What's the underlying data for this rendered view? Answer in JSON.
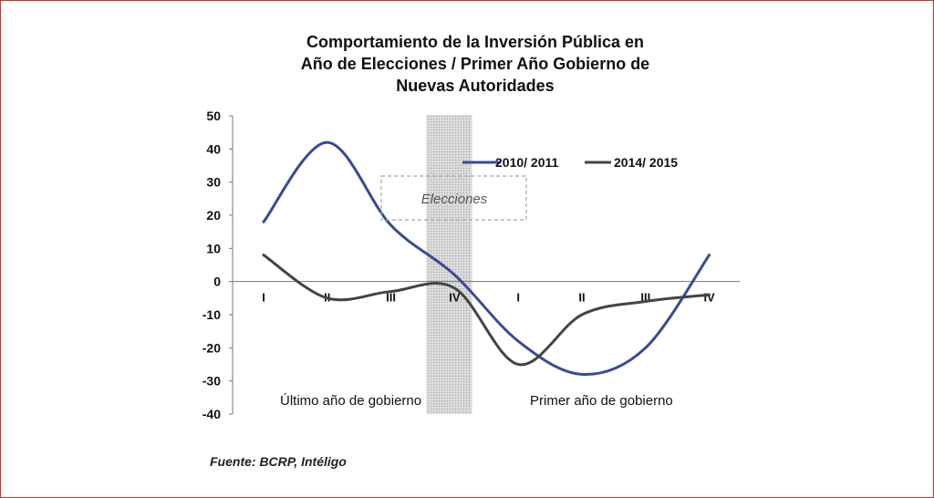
{
  "title_lines": [
    "Comportamiento de la Inversión Pública en",
    "Año de Elecciones / Primer Año Gobierno de",
    "Nuevas Autoridades"
  ],
  "source": "Fuente: BCRP, Intéligo",
  "chart_data": {
    "type": "line",
    "title": "Comportamiento de la Inversión Pública en Año de Elecciones / Primer Año Gobierno de Nuevas Autoridades",
    "categories": [
      "I",
      "II",
      "III",
      "IV",
      "I",
      "II",
      "III",
      "IV"
    ],
    "ylim": [
      -40,
      50
    ],
    "yticks": [
      50,
      40,
      30,
      20,
      10,
      0,
      -10,
      -20,
      -30,
      -40
    ],
    "series": [
      {
        "name": "2010/ 2011",
        "color": "#3a4a96",
        "values": [
          18,
          42,
          17,
          2,
          -18,
          -28,
          -20,
          8
        ]
      },
      {
        "name": "2014/ 2015",
        "color": "#444444",
        "values": [
          8,
          -5,
          -3,
          -2,
          -25,
          -10,
          -6,
          -4
        ]
      }
    ],
    "legend_position": "top-right",
    "annotations": {
      "elections": "Elecciones",
      "last_year": "Último año de gobierno",
      "first_year": "Primer año de gobierno"
    },
    "shaded_region_at_category": 3
  }
}
